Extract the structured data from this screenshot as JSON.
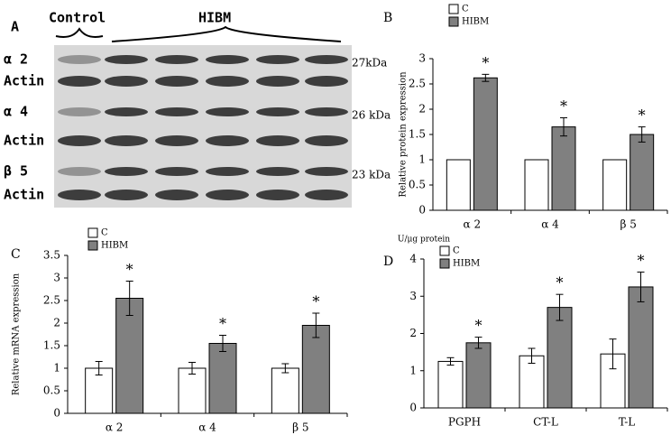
{
  "panel_a": {
    "panel": "A",
    "groups": [
      "Control",
      "HIBM"
    ],
    "rows": [
      {
        "label": "α 2",
        "size": "27kDa"
      },
      {
        "label": "Actin"
      },
      {
        "label": "α 4",
        "size": "26 kDa"
      },
      {
        "label": "Actin"
      },
      {
        "label": "β 5",
        "size": "23 kDa"
      },
      {
        "label": "Actin"
      }
    ]
  },
  "chart_data": [
    {
      "type": "bar",
      "panel": "B",
      "ylabel": "Relative protein expression",
      "categories": [
        "α 2",
        "α 4",
        "β 5"
      ],
      "series": [
        {
          "name": "C",
          "color": "#ffffff",
          "values": [
            1,
            1,
            1
          ]
        },
        {
          "name": "HIBM",
          "color": "#808080",
          "values": [
            2.62,
            1.65,
            1.5
          ],
          "errors": [
            0.07,
            0.18,
            0.15
          ]
        }
      ],
      "annotations": [
        "*",
        "*",
        "*"
      ],
      "ylim": [
        0,
        3
      ],
      "yticks": [
        0,
        0.5,
        1,
        1.5,
        2,
        2.5,
        3
      ]
    },
    {
      "type": "bar",
      "panel": "C",
      "ylabel": "Relative mRNA expression",
      "categories": [
        "α 2",
        "α 4",
        "β 5"
      ],
      "series": [
        {
          "name": "C",
          "color": "#ffffff",
          "values": [
            1,
            1,
            1
          ],
          "errors": [
            0.15,
            0.13,
            0.1
          ]
        },
        {
          "name": "HIBM",
          "color": "#808080",
          "values": [
            2.55,
            1.55,
            1.95
          ],
          "errors": [
            0.38,
            0.18,
            0.27
          ]
        }
      ],
      "annotations": [
        "*",
        "*",
        "*"
      ],
      "ylim": [
        0,
        3.5
      ],
      "yticks": [
        0,
        0.5,
        1,
        1.5,
        2,
        2.5,
        3,
        3.5
      ]
    },
    {
      "type": "bar",
      "panel": "D",
      "ylabel": "U/μg protein",
      "categories": [
        "PGPH",
        "CT-L",
        "T-L"
      ],
      "series": [
        {
          "name": "C",
          "color": "#ffffff",
          "values": [
            1.25,
            1.4,
            1.45
          ],
          "errors": [
            0.1,
            0.2,
            0.4
          ]
        },
        {
          "name": "HIBM",
          "color": "#808080",
          "values": [
            1.75,
            2.7,
            3.25
          ],
          "errors": [
            0.15,
            0.35,
            0.4
          ]
        }
      ],
      "annotations": [
        "*",
        "*",
        "*"
      ],
      "ylim": [
        0,
        4
      ],
      "yticks": [
        0,
        1,
        2,
        3,
        4
      ]
    }
  ]
}
